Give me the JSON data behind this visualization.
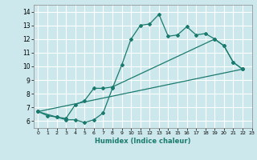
{
  "title": "",
  "xlabel": "Humidex (Indice chaleur)",
  "xlim": [
    -0.5,
    23
  ],
  "ylim": [
    5.5,
    14.5
  ],
  "xticks": [
    0,
    1,
    2,
    3,
    4,
    5,
    6,
    7,
    8,
    9,
    10,
    11,
    12,
    13,
    14,
    15,
    16,
    17,
    18,
    19,
    20,
    21,
    22,
    23
  ],
  "yticks": [
    6,
    7,
    8,
    9,
    10,
    11,
    12,
    13,
    14
  ],
  "background_color": "#cce8ec",
  "line_color": "#1a7a6e",
  "grid_color": "#ffffff",
  "line1_x": [
    0,
    1,
    2,
    3,
    4,
    5,
    6,
    7,
    8,
    9,
    10,
    11,
    12,
    13,
    14,
    15,
    16,
    17,
    18,
    19,
    20,
    21,
    22
  ],
  "line1_y": [
    6.7,
    6.4,
    6.3,
    6.1,
    6.1,
    5.9,
    6.1,
    6.6,
    8.4,
    10.1,
    12.0,
    13.0,
    13.1,
    13.8,
    12.2,
    12.3,
    12.9,
    12.3,
    12.4,
    12.0,
    11.5,
    10.3,
    9.8
  ],
  "line2_x": [
    0,
    2,
    3,
    4,
    5,
    6,
    7,
    8,
    19,
    20,
    21,
    22
  ],
  "line2_y": [
    6.7,
    6.3,
    6.2,
    7.2,
    7.5,
    8.4,
    8.4,
    8.5,
    12.0,
    11.5,
    10.3,
    9.8
  ],
  "line3_x": [
    0,
    22
  ],
  "line3_y": [
    6.7,
    9.8
  ]
}
